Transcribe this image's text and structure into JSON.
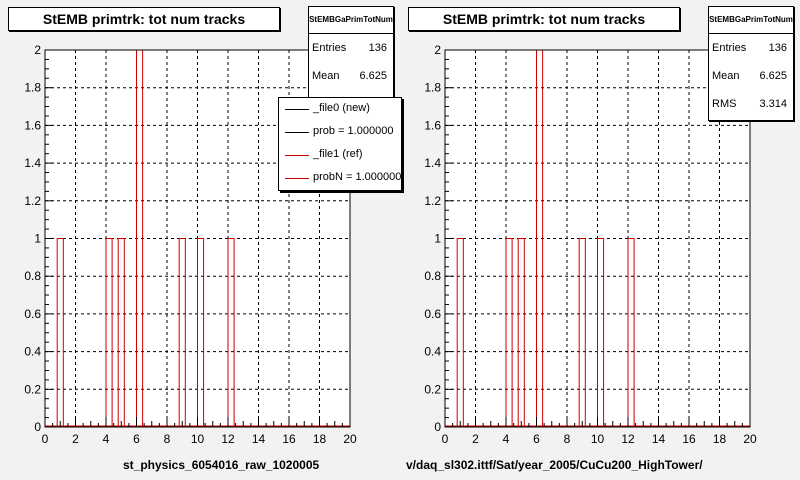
{
  "left": {
    "title": "StEMB primtrk: tot num tracks",
    "stats": {
      "name": "StEMBGaPrimTotNum",
      "rows": [
        {
          "label": "Entries",
          "value": "136"
        },
        {
          "label": "Mean",
          "value": "6.625"
        }
      ]
    },
    "legend": [
      {
        "label": "_file0 (new)",
        "color": "#000000"
      },
      {
        "label": "prob = 1.000000",
        "color": "#000000"
      },
      {
        "label": "_file1 (ref)",
        "color": "#cc0000"
      },
      {
        "label": "probN = 1.000000",
        "color": "#cc0000"
      }
    ],
    "xtitle": "st_physics_6054016_raw_1020005"
  },
  "right": {
    "title": "StEMB primtrk: tot num tracks",
    "stats": {
      "name": "StEMBGaPrimTotNum",
      "rows": [
        {
          "label": "Entries",
          "value": "136"
        },
        {
          "label": "Mean",
          "value": "6.625"
        },
        {
          "label": "RMS",
          "value": "3.314"
        }
      ]
    },
    "xtitle": "v/daq_sl302.ittf/Sat/year_2005/CuCu200_HighTower/"
  },
  "chart_data": [
    {
      "type": "bar",
      "title": "StEMB primtrk: tot num tracks",
      "xlabel": "st_physics_6054016_raw_1020005",
      "ylabel": "",
      "xlim": [
        0,
        20
      ],
      "ylim": [
        0,
        2
      ],
      "grid": true,
      "bins": [
        {
          "x0": 0.8,
          "x1": 1.2,
          "y": 1
        },
        {
          "x0": 4.0,
          "x1": 4.4,
          "y": 1
        },
        {
          "x0": 4.8,
          "x1": 5.2,
          "y": 1
        },
        {
          "x0": 6.0,
          "x1": 6.4,
          "y": 2
        },
        {
          "x0": 8.8,
          "x1": 9.2,
          "y": 1
        },
        {
          "x0": 10.0,
          "x1": 10.4,
          "y": 1
        },
        {
          "x0": 12.0,
          "x1": 12.4,
          "y": 1
        }
      ],
      "series_color": "#cc0000",
      "xticks": [
        "0",
        "2",
        "4",
        "6",
        "8",
        "10",
        "12",
        "14",
        "16",
        "18",
        "20"
      ],
      "yticks": [
        "0",
        "0.2",
        "0.4",
        "0.6",
        "0.8",
        "1",
        "1.2",
        "1.4",
        "1.6",
        "1.8",
        "2"
      ]
    },
    {
      "type": "bar",
      "title": "StEMB primtrk: tot num tracks",
      "xlabel": "v/daq_sl302.ittf/Sat/year_2005/CuCu200_HighTower/",
      "ylabel": "",
      "xlim": [
        0,
        20
      ],
      "ylim": [
        0,
        2
      ],
      "grid": true,
      "bins": [
        {
          "x0": 0.8,
          "x1": 1.2,
          "y": 1
        },
        {
          "x0": 4.0,
          "x1": 4.4,
          "y": 1
        },
        {
          "x0": 4.8,
          "x1": 5.2,
          "y": 1
        },
        {
          "x0": 6.0,
          "x1": 6.4,
          "y": 2
        },
        {
          "x0": 8.8,
          "x1": 9.2,
          "y": 1
        },
        {
          "x0": 10.0,
          "x1": 10.4,
          "y": 1
        },
        {
          "x0": 12.0,
          "x1": 12.4,
          "y": 1
        }
      ],
      "series_color": "#cc0000",
      "xticks": [
        "0",
        "2",
        "4",
        "6",
        "8",
        "10",
        "12",
        "14",
        "16",
        "18",
        "20"
      ],
      "yticks": [
        "0",
        "0.2",
        "0.4",
        "0.6",
        "0.8",
        "1",
        "1.2",
        "1.4",
        "1.6",
        "1.8",
        "2"
      ]
    }
  ]
}
